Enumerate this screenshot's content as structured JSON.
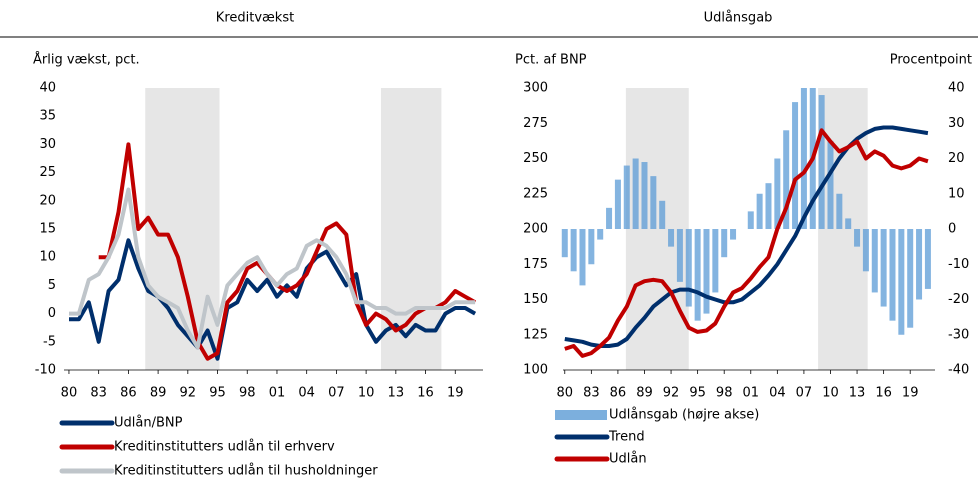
{
  "chart_data": [
    {
      "type": "line",
      "title": "Kreditvækst",
      "y_label": "Årlig vækst, pct.",
      "x": [
        1980,
        1981,
        1982,
        1983,
        1984,
        1985,
        1986,
        1987,
        1988,
        1989,
        1990,
        1991,
        1992,
        1993,
        1994,
        1995,
        1996,
        1997,
        1998,
        1999,
        2000,
        2001,
        2002,
        2003,
        2004,
        2005,
        2006,
        2007,
        2008,
        2009,
        2010,
        2011,
        2012,
        2013,
        2014,
        2015,
        2016,
        2017,
        2018,
        2019,
        2020,
        2021
      ],
      "xlim": [
        1979.5,
        2021.8
      ],
      "xticks": [
        {
          "value": 1980,
          "label": "80"
        },
        {
          "value": 1983,
          "label": "83"
        },
        {
          "value": 1986,
          "label": "86"
        },
        {
          "value": 1989,
          "label": "89"
        },
        {
          "value": 1992,
          "label": "92"
        },
        {
          "value": 1995,
          "label": "95"
        },
        {
          "value": 1998,
          "label": "98"
        },
        {
          "value": 2001,
          "label": "01"
        },
        {
          "value": 2004,
          "label": "04"
        },
        {
          "value": 2007,
          "label": "07"
        },
        {
          "value": 2010,
          "label": "10"
        },
        {
          "value": 2013,
          "label": "13"
        },
        {
          "value": 2016,
          "label": "16"
        },
        {
          "value": 2019,
          "label": "19"
        }
      ],
      "ylim": [
        -10,
        40
      ],
      "yticks": [
        -10,
        -5,
        0,
        5,
        10,
        15,
        20,
        25,
        30,
        35,
        40
      ],
      "shaded": [
        [
          1987.7,
          1995.2
        ],
        [
          2011.5,
          2017.6
        ]
      ],
      "series": [
        {
          "name": "Udlån/BNP",
          "color": "#002f6c",
          "values": [
            -1,
            -1,
            2,
            -5,
            4,
            6,
            13,
            8,
            4,
            3,
            1,
            -2,
            -4,
            -6,
            -3,
            -8,
            1,
            2,
            6,
            4,
            6,
            3,
            5,
            3,
            8,
            10,
            11,
            8,
            5,
            7,
            -2,
            -5,
            -3,
            -2,
            -4,
            -2,
            -3,
            -3,
            0,
            1,
            1,
            0
          ]
        },
        {
          "name": "Kreditinstitutters udlån til erhverv",
          "color": "#c00000",
          "values": [
            null,
            null,
            null,
            10,
            10,
            18,
            30,
            15,
            17,
            14,
            14,
            10,
            3,
            -5,
            -8,
            -7,
            2,
            4,
            8,
            9,
            7,
            5,
            4,
            5,
            7,
            11,
            15,
            16,
            14,
            2,
            -2,
            0,
            -1,
            -3,
            -2,
            0,
            1,
            1,
            2,
            4,
            3,
            2
          ]
        },
        {
          "name": "Kreditinstitutters udlån til husholdninger",
          "color": "#bfc5ca",
          "values": [
            0,
            0,
            6,
            7,
            10,
            14,
            22,
            10,
            5,
            3,
            2,
            1,
            -3,
            -6,
            3,
            -2,
            5,
            7,
            9,
            10,
            7,
            5,
            7,
            8,
            12,
            13,
            12,
            10,
            7,
            2,
            2,
            1,
            1,
            0,
            0,
            1,
            1,
            1,
            1,
            2,
            2,
            2
          ]
        }
      ]
    },
    {
      "type": "line",
      "title": "Udlånsgab",
      "y_label": "Pct. af BNP",
      "y2_label": "Procentpoint",
      "x": [
        1980,
        1981,
        1982,
        1983,
        1984,
        1985,
        1986,
        1987,
        1988,
        1989,
        1990,
        1991,
        1992,
        1993,
        1994,
        1995,
        1996,
        1997,
        1998,
        1999,
        2000,
        2001,
        2002,
        2003,
        2004,
        2005,
        2006,
        2007,
        2008,
        2009,
        2010,
        2011,
        2012,
        2013,
        2014,
        2015,
        2016,
        2017,
        2018,
        2019,
        2020,
        2021
      ],
      "xlim": [
        1979.8,
        2021.8
      ],
      "xticks": [
        {
          "value": 1980,
          "label": "80"
        },
        {
          "value": 1983,
          "label": "83"
        },
        {
          "value": 1986,
          "label": "86"
        },
        {
          "value": 1989,
          "label": "89"
        },
        {
          "value": 1992,
          "label": "92"
        },
        {
          "value": 1995,
          "label": "95"
        },
        {
          "value": 1998,
          "label": "98"
        },
        {
          "value": 2001,
          "label": "01"
        },
        {
          "value": 2004,
          "label": "04"
        },
        {
          "value": 2007,
          "label": "07"
        },
        {
          "value": 2010,
          "label": "10"
        },
        {
          "value": 2013,
          "label": "13"
        },
        {
          "value": 2016,
          "label": "16"
        },
        {
          "value": 2019,
          "label": "19"
        }
      ],
      "ylim": [
        100,
        300
      ],
      "yticks": [
        100,
        125,
        150,
        175,
        200,
        225,
        250,
        275,
        300
      ],
      "y2lim": [
        -40,
        40
      ],
      "y2ticks": [
        -40,
        -30,
        -20,
        -10,
        0,
        10,
        20,
        30,
        40
      ],
      "shaded": [
        [
          1986.9,
          1994
        ],
        [
          2008.6,
          2014.2
        ]
      ],
      "series": [
        {
          "name": "Udlånsgab (højre akse)",
          "type": "bar",
          "axis": "y2",
          "color": "#5b9bd5",
          "values": [
            -8,
            -12,
            -16,
            -10,
            -3,
            6,
            14,
            18,
            20,
            19,
            15,
            8,
            -5,
            -15,
            -22,
            -26,
            -24,
            -18,
            -8,
            -3,
            0,
            5,
            10,
            13,
            20,
            28,
            36,
            40,
            40,
            38,
            25,
            10,
            3,
            -5,
            -12,
            -18,
            -22,
            -26,
            -30,
            -28,
            -20,
            -17
          ]
        },
        {
          "name": "Trend",
          "color": "#002f6c",
          "values": [
            122,
            121,
            120,
            118,
            117,
            117,
            118,
            122,
            130,
            137,
            145,
            150,
            155,
            157,
            157,
            155,
            152,
            150,
            148,
            148,
            150,
            155,
            160,
            167,
            175,
            185,
            195,
            208,
            220,
            230,
            240,
            250,
            258,
            264,
            268,
            271,
            272,
            272,
            271,
            270,
            269,
            268
          ]
        },
        {
          "name": "Udlån",
          "color": "#c00000",
          "values": [
            115,
            117,
            110,
            112,
            117,
            123,
            135,
            145,
            160,
            163,
            164,
            163,
            155,
            142,
            130,
            127,
            128,
            133,
            145,
            155,
            158,
            165,
            173,
            180,
            200,
            215,
            235,
            240,
            250,
            270,
            262,
            255,
            258,
            262,
            250,
            255,
            252,
            245,
            243,
            245,
            250,
            248
          ]
        }
      ]
    }
  ]
}
